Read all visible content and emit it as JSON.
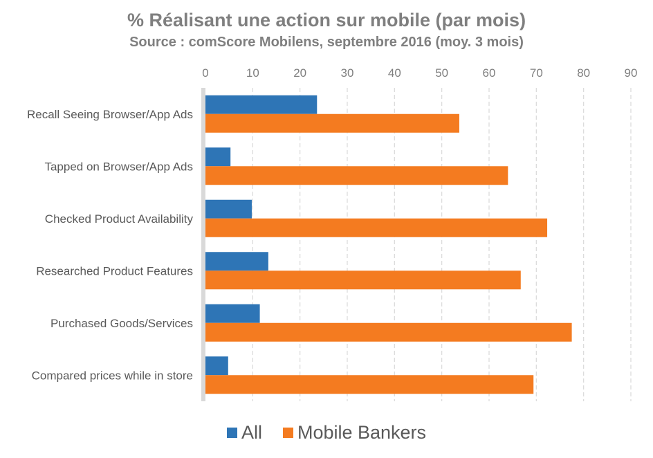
{
  "chart_data": {
    "type": "bar",
    "orientation": "horizontal",
    "title": "% Réalisant une action sur mobile (par mois)",
    "subtitle": "Source : comScore Mobilens, septembre 2016 (moy. 3 mois)",
    "categories": [
      "Recall Seeing Browser/App Ads",
      "Tapped on Browser/App Ads",
      "Checked Product Availability",
      "Researched Product Features",
      "Purchased Goods/Services",
      "Compared prices while in store"
    ],
    "series": [
      {
        "name": "All",
        "color": "#2e75b6",
        "values": [
          23.6,
          5.3,
          9.8,
          13.3,
          11.5,
          4.8
        ]
      },
      {
        "name": "Mobile Bankers",
        "color": "#f47b20",
        "values": [
          53.7,
          64.0,
          72.3,
          66.7,
          77.5,
          69.4
        ]
      }
    ],
    "xlim": [
      0,
      90
    ],
    "xticks": [
      "0",
      "10",
      "20",
      "30",
      "40",
      "50",
      "60",
      "70",
      "80",
      "90"
    ],
    "x_axis_position": "top",
    "grid": true,
    "legend_position": "bottom"
  }
}
